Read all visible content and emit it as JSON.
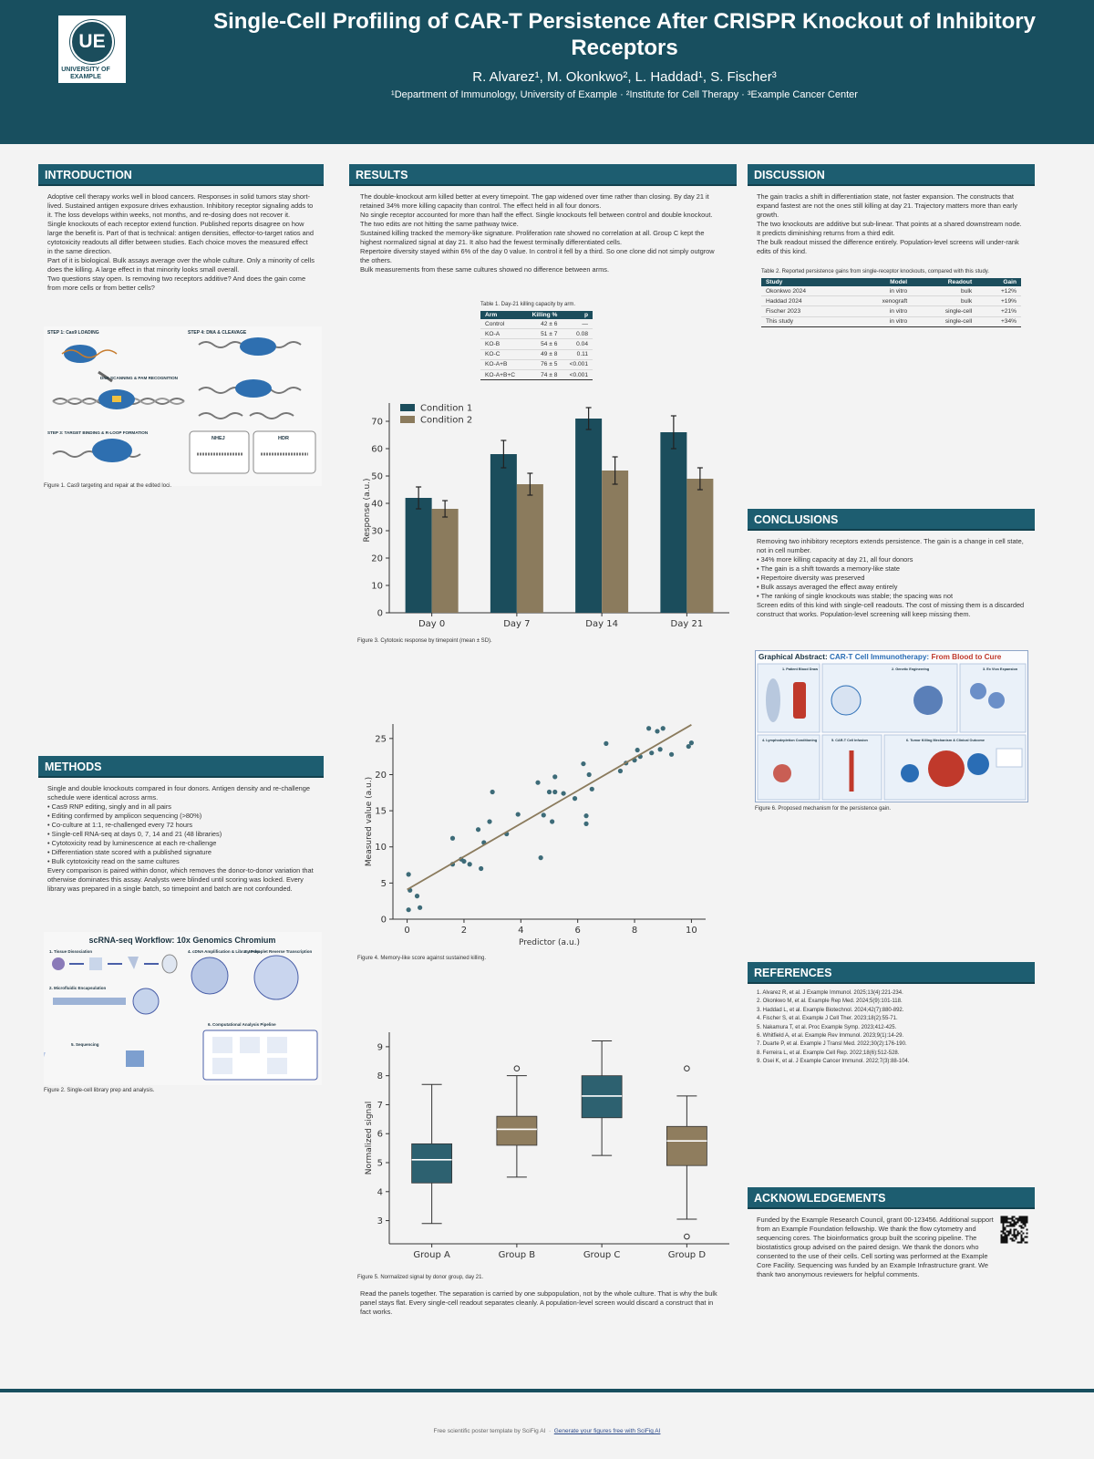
{
  "header": {
    "logo_text": "UE",
    "logo_caption": "UNIVERSITY OF EXAMPLE",
    "title": "Single-Cell Profiling of CAR-T Persistence After CRISPR Knockout of Inhibitory Receptors",
    "authors": "R. Alvarez¹, M. Okonkwo², L. Haddad¹, S. Fischer³",
    "affiliations": "¹Department of Immunology, University of Example · ²Institute for Cell Therapy · ³Example Cancer Center"
  },
  "introduction": {
    "heading": "INTRODUCTION",
    "paragraphs": [
      "Adoptive cell therapy works well in blood cancers. Responses in solid tumors stay short-lived. Sustained antigen exposure drives exhaustion. Inhibitory receptor signaling adds to it. The loss develops within weeks, not months, and re-dosing does not recover it.",
      "Single knockouts of each receptor extend function. Published reports disagree on how large the benefit is. Part of that is technical: antigen densities, effector-to-target ratios and cytotoxicity readouts all differ between studies. Each choice moves the measured effect in the same direction.",
      "Part of it is biological. Bulk assays average over the whole culture. Only a minority of cells does the killing. A large effect in that minority looks small overall.",
      "Two questions stay open. Is removing two receptors additive? And does the gain come from more cells or from better cells?"
    ]
  },
  "figure1": {
    "labels": [
      "STEP 1: Cas9 LOADING",
      "STEP 4: DNA & CLEAVAGE",
      "DNA SCANNING & PAM RECOGNITION",
      "STEP 3: TARGET BINDING & R-LOOP FORMATION",
      "NHEJ",
      "HDR"
    ],
    "caption": "Figure 1. Cas9 targeting and repair at the edited loci."
  },
  "methods": {
    "heading": "METHODS",
    "intro": "Single and double knockouts compared in four donors. Antigen density and re-challenge schedule were identical across arms.",
    "bullets": [
      "Cas9 RNP editing, singly and in all pairs",
      "Editing confirmed by amplicon sequencing (>80%)",
      "Co-culture at 1:1, re-challenged every 72 hours",
      "Single-cell RNA-seq at days 0, 7, 14 and 21 (48 libraries)",
      "Cytotoxicity read by luminescence at each re-challenge",
      "Differentiation state scored with a published signature",
      "Bulk cytotoxicity read on the same cultures"
    ],
    "closing": "Every comparison is paired within donor, which removes the donor-to-donor variation that otherwise dominates this assay. Analysts were blinded until scoring was locked. Every library was prepared in a single batch, so timepoint and batch are not confounded."
  },
  "figure2": {
    "title": "scRNA-seq Workflow: 10x Genomics Chromium",
    "labels": [
      "1. Tissue Dissociation",
      "2. Microfluidic Encapsulation",
      "3. In-droplet Reverse Transcription",
      "4. cDNA Amplification & Library Prep",
      "5. Sequencing",
      "6. Computational Analysis Pipeline"
    ],
    "caption": "Figure 2. Single-cell library prep and analysis."
  },
  "results": {
    "heading": "RESULTS",
    "paragraphs": [
      "The double-knockout arm killed better at every timepoint. The gap widened over time rather than closing. By day 21 it retained 34% more killing capacity than control. The effect held in all four donors.",
      "No single receptor accounted for more than half the effect. Single knockouts fell between control and double knockout. The two edits are not hitting the same pathway twice.",
      "Sustained killing tracked the memory-like signature. Proliferation rate showed no correlation at all. Group C kept the highest normalized signal at day 21. It also had the fewest terminally differentiated cells.",
      "Repertoire diversity stayed within 6% of the day 0 value. In control it fell by a third. So one clone did not simply outgrow the others.",
      "Bulk measurements from these same cultures showed no difference between arms."
    ],
    "table1": {
      "caption": "Table 1. Day-21 killing capacity by arm.",
      "columns": [
        "Arm",
        "Killing %",
        "p"
      ],
      "rows": [
        [
          "Control",
          "42 ± 6",
          "—"
        ],
        [
          "KO-A",
          "51 ± 7",
          "0.08"
        ],
        [
          "KO-B",
          "54 ± 6",
          "0.04"
        ],
        [
          "KO-C",
          "49 ± 8",
          "0.11"
        ],
        [
          "KO-A+B",
          "76 ± 5",
          "<0.001"
        ],
        [
          "KO-A+B+C",
          "74 ± 8",
          "<0.001"
        ]
      ]
    },
    "figure3": {
      "type": "bar",
      "categories": [
        "Day 0",
        "Day 7",
        "Day 14",
        "Day 21"
      ],
      "series": [
        {
          "name": "Condition 1",
          "color": "#1b4d5c",
          "values": [
            42,
            58,
            71,
            66
          ],
          "errors": [
            4,
            5,
            4,
            6
          ]
        },
        {
          "name": "Condition 2",
          "color": "#8b7b5d",
          "values": [
            38,
            47,
            52,
            49
          ],
          "errors": [
            3,
            4,
            5,
            4
          ]
        }
      ],
      "ylabel": "Response (a.u.)",
      "ylim": [
        0,
        75
      ],
      "yticks": [
        0,
        10,
        20,
        30,
        40,
        50,
        60,
        70
      ],
      "legend": "upper left",
      "caption": "Figure 3. Cytotoxic response by timepoint (mean ± SD)."
    },
    "figure4": {
      "type": "scatter",
      "color": "#3d6b78",
      "x": [
        0.05,
        0.1,
        0.05,
        0.35,
        0.45,
        1.6,
        1.6,
        1.9,
        2.0,
        2.2,
        2.5,
        2.6,
        2.7,
        2.9,
        3.0,
        3.5,
        3.9,
        4.6,
        4.7,
        4.8,
        5.0,
        5.1,
        5.2,
        5.2,
        5.5,
        5.9,
        6.2,
        6.3,
        6.3,
        6.4,
        6.5,
        7.0,
        7.5,
        7.7,
        8.0,
        8.1,
        8.2,
        8.5,
        8.6,
        8.8,
        8.9,
        9.0,
        9.3,
        9.9,
        10.0
      ],
      "y": [
        6.2,
        4.0,
        1.3,
        3.2,
        1.6,
        11.2,
        7.6,
        8.3,
        8.0,
        7.6,
        12.4,
        7.0,
        10.6,
        13.5,
        17.6,
        11.8,
        14.5,
        18.9,
        8.5,
        14.4,
        17.6,
        13.5,
        19.7,
        17.6,
        17.4,
        16.7,
        21.5,
        14.3,
        13.2,
        20.0,
        18.0,
        24.3,
        20.5,
        21.6,
        22.0,
        23.4,
        22.5,
        26.4,
        23.0,
        26.0,
        23.5,
        26.4,
        22.8,
        23.9,
        24.4
      ],
      "trend_line": {
        "x": [
          0,
          10
        ],
        "y": [
          4.1,
          26.9
        ],
        "color": "#8b7b5d"
      },
      "xlabel": "Predictor (a.u.)",
      "ylabel": "Measured value (a.u.)",
      "xlim": [
        -0.5,
        10.5
      ],
      "ylim": [
        0,
        27
      ],
      "xticks": [
        0,
        2,
        4,
        6,
        8,
        10
      ],
      "yticks": [
        0,
        5,
        10,
        15,
        20,
        25
      ],
      "caption": "Figure 4. Memory-like score against sustained killing."
    },
    "figure5": {
      "type": "box",
      "categories": [
        "Group A",
        "Group B",
        "Group C",
        "Group D"
      ],
      "colors": [
        "#2d6170",
        "#8f7d5e",
        "#2d6170",
        "#8f7d5e"
      ],
      "min": [
        2.9,
        4.5,
        5.25,
        3.05
      ],
      "q1": [
        4.3,
        5.6,
        6.55,
        4.9
      ],
      "median": [
        5.1,
        6.15,
        7.3,
        5.75
      ],
      "q3": [
        5.65,
        6.6,
        8.0,
        6.25
      ],
      "max": [
        7.7,
        8.0,
        9.2,
        7.3
      ],
      "outliers": [
        [],
        [
          8.25
        ],
        [],
        [
          8.25,
          2.45
        ]
      ],
      "ylabel": "Normalized signal",
      "ylim": [
        2.2,
        9.5
      ],
      "yticks": [
        3,
        4,
        5,
        6,
        7,
        8,
        9
      ],
      "caption": "Figure 5. Normalized signal by donor group, day 21."
    },
    "closing": "Read the panels together. The separation is carried by one subpopulation, not by the whole culture. That is why the bulk panel stays flat. Every single-cell readout separates cleanly. A population-level screen would discard a construct that in fact works."
  },
  "discussion": {
    "heading": "DISCUSSION",
    "paragraphs": [
      "The gain tracks a shift in differentiation state, not faster expansion. The constructs that expand fastest are not the ones still killing at day 21. Trajectory matters more than early growth.",
      "The two knockouts are additive but sub-linear. That points at a shared downstream node. It predicts diminishing returns from a third edit.",
      "The bulk readout missed the difference entirely. Population-level screens will under-rank edits of this kind."
    ],
    "table2": {
      "caption": "Table 2. Reported persistence gains from single-receptor knockouts, compared with this study.",
      "columns": [
        "Study",
        "Model",
        "Readout",
        "Gain"
      ],
      "rows": [
        [
          "Okonkwo 2024",
          "in vitro",
          "bulk",
          "+12%"
        ],
        [
          "Haddad 2024",
          "xenograft",
          "bulk",
          "+19%"
        ],
        [
          "Fischer 2023",
          "in vitro",
          "single-cell",
          "+21%"
        ],
        [
          "This study",
          "in vitro",
          "single-cell",
          "+34%"
        ]
      ]
    }
  },
  "conclusions": {
    "heading": "CONCLUSIONS",
    "intro": "Removing two inhibitory receptors extends persistence. The gain is a change in cell state, not in cell number.",
    "bullets": [
      "34% more killing capacity at day 21, all four donors",
      "The gain is a shift towards a memory-like state",
      "Repertoire diversity was preserved",
      "Bulk assays averaged the effect away entirely",
      "The ranking of single knockouts was stable; the spacing was not"
    ],
    "closing": "Screen edits of this kind with single-cell readouts. The cost of missing them is a discarded construct that works. Population-level screening will keep missing them."
  },
  "figure6": {
    "title": [
      "Graphical Abstract:",
      "CAR-T Cell Immunotherapy:",
      "From Blood to Cure"
    ],
    "labels": [
      "1. Patient Blood Draw",
      "2. Genetic Engineering",
      "3. Ex Vivo Expansion",
      "4. Lymphodepletion Conditioning",
      "5. CAR-T Cell Infusion",
      "6. Tumor Killing Mechanism & Clinical Outcome"
    ],
    "caption": "Figure 6. Proposed mechanism for the persistence gain."
  },
  "references": {
    "heading": "REFERENCES",
    "items": [
      "1. Alvarez R, et al. J Example Immunol. 2025;13(4):221-234.",
      "2. Okonkwo M, et al. Example Rep Med. 2024;5(9):101-118.",
      "3. Haddad L, et al. Example Biotechnol. 2024;42(7):880-892.",
      "4. Fischer S, et al. Example J Cell Ther. 2023;18(2):55-71.",
      "5. Nakamura T, et al. Proc Example Symp. 2023;412-425.",
      "6. Whitfield A, et al. Example Rev Immunol. 2023;9(1):14-29.",
      "7. Duarte P, et al. Example J Transl Med. 2022;30(2):176-190.",
      "8. Ferreira L, et al. Example Cell Rep. 2022;18(6):512-528.",
      "9. Osei K, et al. J Example Cancer Immunol. 2022;7(3):88-104."
    ]
  },
  "acknowledgements": {
    "heading": "ACKNOWLEDGEMENTS",
    "text": "Funded by the Example Research Council, grant 00-123456. Additional support from an Example Foundation fellowship. We thank the flow cytometry and sequencing cores. The bioinformatics group built the scoring pipeline. The biostatistics group advised on the paired design. We thank the donors who consented to the use of their cells. Cell sorting was performed at the Example Core Facility. Sequencing was funded by an Example Infrastructure grant. We thank two anonymous reviewers for helpful comments."
  },
  "footer": {
    "text": "Free scientific poster template by SciFig AI",
    "link": "Generate your figures free with SciFig AI"
  }
}
